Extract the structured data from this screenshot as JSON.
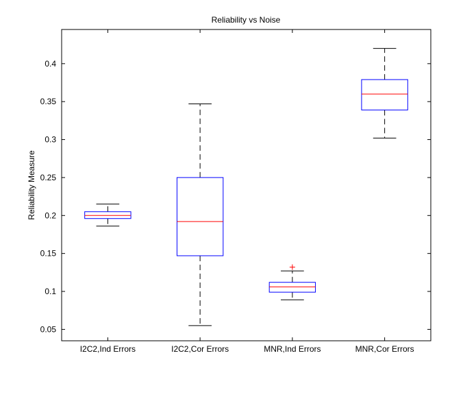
{
  "chart_data": {
    "type": "box",
    "title": "Reliability vs Noise",
    "xlabel": "",
    "ylabel": "Reliability Measure",
    "ylim": [
      0.035,
      0.445
    ],
    "yticks": [
      0.05,
      0.1,
      0.15,
      0.2,
      0.25,
      0.3,
      0.35,
      0.4
    ],
    "ytick_labels": [
      "0.05",
      "0.1",
      "0.15",
      "0.2",
      "0.25",
      "0.3",
      "0.35",
      "0.4"
    ],
    "categories": [
      "I2C2,Ind Errors",
      "I2C2,Cor Errors",
      "MNR,Ind Errors",
      "MNR,Cor Errors"
    ],
    "boxes": [
      {
        "category": "I2C2,Ind Errors",
        "whisker_low": 0.186,
        "q1": 0.196,
        "median": 0.2,
        "q3": 0.205,
        "whisker_high": 0.215,
        "outliers": []
      },
      {
        "category": "I2C2,Cor Errors",
        "whisker_low": 0.055,
        "q1": 0.147,
        "median": 0.192,
        "q3": 0.25,
        "whisker_high": 0.347,
        "outliers": []
      },
      {
        "category": "MNR,Ind Errors",
        "whisker_low": 0.089,
        "q1": 0.099,
        "median": 0.106,
        "q3": 0.112,
        "whisker_high": 0.127,
        "outliers": [
          0.132
        ]
      },
      {
        "category": "MNR,Cor Errors",
        "whisker_low": 0.302,
        "q1": 0.339,
        "median": 0.36,
        "q3": 0.379,
        "whisker_high": 0.42,
        "outliers": []
      }
    ],
    "colors": {
      "box": "#0000ff",
      "median": "#ff0000",
      "whisker": "#000000",
      "outlier": "#ff0000",
      "axes": "#000000"
    },
    "grid": false
  }
}
